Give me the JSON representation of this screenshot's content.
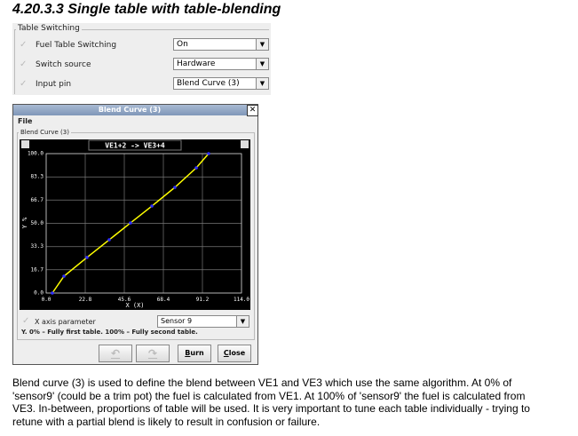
{
  "header": {
    "title": "4.20.3.3 Single table with table-blending"
  },
  "table_switching": {
    "title": "Table Switching",
    "rows": [
      {
        "label": "Fuel Table Switching",
        "value": "On"
      },
      {
        "label": "Switch source",
        "value": "Hardware"
      },
      {
        "label": "Input pin",
        "value": "Blend Curve (3)"
      }
    ]
  },
  "window": {
    "title": "Blend Curve (3)",
    "menu": "File",
    "group": "Blend Curve (3)",
    "chart": {
      "title": "VE1+2 -> VE3+4",
      "xlabel": "X (X)",
      "ylabel": "Y %",
      "x": [
        3.6,
        10.4,
        23.8,
        36.8,
        49.2,
        61.7,
        75.1,
        87.6,
        94.8
      ],
      "y": [
        0,
        12.1,
        25.5,
        38.2,
        50.3,
        62.4,
        75.8,
        89.8,
        100
      ],
      "xlim": [
        0,
        114
      ],
      "ylim": [
        0,
        100
      ],
      "xticks": [
        {
          "value": 0,
          "label": "0.0"
        },
        22.8,
        45.6,
        68.4,
        91.2,
        {
          "value": 114,
          "label": "114.0"
        }
      ],
      "yticks": [
        {
          "value": 0,
          "label": "0.0"
        },
        16.7,
        33.3,
        {
          "value": 50,
          "label": "50.0"
        },
        66.7,
        83.3,
        {
          "value": 100,
          "label": "100.0"
        }
      ],
      "line_color": "#ffff00",
      "point_color": "#3030ff"
    },
    "x_axis_parameter": {
      "label": "X axis parameter",
      "value": "Sensor 9"
    },
    "note": "Y. 0% – Fully first table. 100% – Fully second table.",
    "buttons": [
      "Burn",
      "Close"
    ]
  },
  "description": "Blend curve (3) is used to define the blend between VE1 and VE3 which use the same algorithm. At 0% of 'sensor9' (could be a trim pot) the fuel is calculated from VE1. At 100% of 'sensor9' the fuel is calculated from VE3. In-between, proportions of table will be used. It is very important to tune each table individually - trying to retune with a partial blend is likely to result in confusion or failure."
}
